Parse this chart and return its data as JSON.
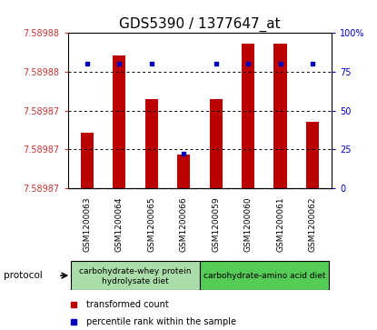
{
  "title": "GDS5390 / 1377647_at",
  "samples": [
    "GSM1200063",
    "GSM1200064",
    "GSM1200065",
    "GSM1200066",
    "GSM1200059",
    "GSM1200060",
    "GSM1200061",
    "GSM1200062"
  ],
  "bar_values": [
    7.589873,
    7.58988,
    7.589876,
    7.589871,
    7.589876,
    7.589881,
    7.589881,
    7.589874
  ],
  "percentile_values": [
    80,
    80,
    80,
    22,
    80,
    80,
    80,
    80
  ],
  "y_min": 7.589868,
  "y_max": 7.589882,
  "y_tick_labels_left": [
    "7.58988",
    "7.58988",
    "7.58987",
    "7.58987",
    "7.58987"
  ],
  "y_tick_pcts": [
    100,
    75,
    50,
    25,
    0
  ],
  "right_y_tick_labels": [
    "100%",
    "75",
    "50",
    "25",
    "0"
  ],
  "bar_color": "#bb0000",
  "percentile_color": "#0000bb",
  "background_color": "#ffffff",
  "plot_bg": "#ffffff",
  "group1_label_line1": "carbohydrate-whey protein",
  "group1_label_line2": "hydrolysate diet",
  "group2_label": "carbohydrate-amino acid diet",
  "group1_color": "#aaddaa",
  "group2_color": "#55cc55",
  "protocol_label": "protocol",
  "legend_bar_label": "transformed count",
  "legend_pct_label": "percentile rank within the sample",
  "tick_label_color_left": "#cc3333",
  "tick_label_color_right": "#0000cc",
  "title_fontsize": 11,
  "tick_fontsize": 7,
  "sample_fontsize": 6.5,
  "protocol_fontsize": 7,
  "legend_fontsize": 7,
  "sample_bg": "#cccccc",
  "sample_border": "#ffffff"
}
